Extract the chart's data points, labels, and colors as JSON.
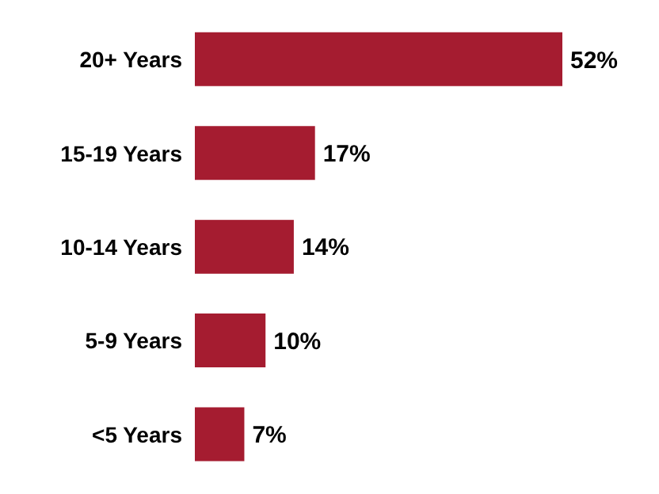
{
  "chart_data": {
    "type": "bar",
    "orientation": "horizontal",
    "categories": [
      "20+ Years",
      "15-19 Years",
      "10-14 Years",
      "5-9 Years",
      "<5 Years"
    ],
    "values": [
      52,
      17,
      14,
      10,
      7
    ],
    "color": "#a51c30",
    "value_labels": [
      "52%",
      "17%",
      "14%",
      "10%",
      "7%"
    ],
    "grid": false,
    "legend": false
  }
}
